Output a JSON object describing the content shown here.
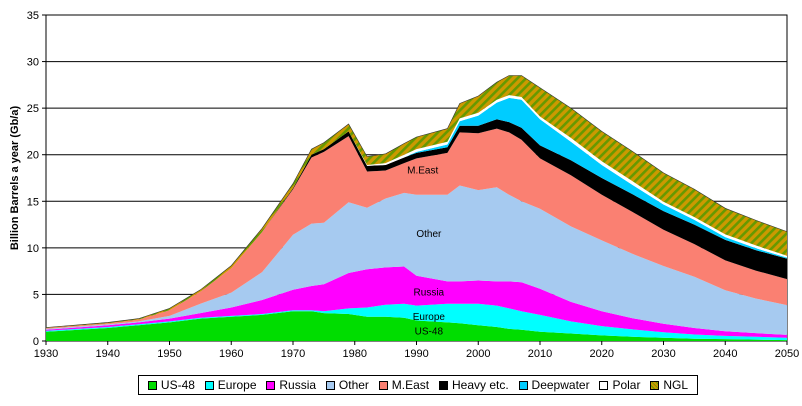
{
  "chart_data": {
    "type": "area",
    "stacked": true,
    "title": "",
    "xlabel": "",
    "ylabel": "Billion Barrels a year (Gb/a)",
    "xlim": [
      1930,
      2050
    ],
    "ylim": [
      0,
      35
    ],
    "x_ticks": [
      "1930",
      "1940",
      "1950",
      "1960",
      "1970",
      "1980",
      "1990",
      "2000",
      "2010",
      "2020",
      "2030",
      "2040",
      "2050"
    ],
    "y_ticks": [
      "0",
      "5",
      "10",
      "15",
      "20",
      "25",
      "30",
      "35"
    ],
    "grid": "horizontal",
    "legend_position": "bottom",
    "x": [
      1930,
      1940,
      1945,
      1950,
      1955,
      1960,
      1965,
      1970,
      1973,
      1975,
      1979,
      1982,
      1985,
      1988,
      1990,
      1995,
      1997,
      2000,
      2003,
      2005,
      2007,
      2010,
      2015,
      2020,
      2025,
      2030,
      2035,
      2040,
      2045,
      2050
    ],
    "series": [
      {
        "name": "US-48",
        "color": "#00dd00",
        "pattern": "solid",
        "values": [
          1.0,
          1.4,
          1.7,
          2.0,
          2.4,
          2.6,
          2.8,
          3.2,
          3.2,
          3.0,
          2.9,
          2.6,
          2.6,
          2.5,
          2.2,
          2.0,
          1.9,
          1.7,
          1.5,
          1.3,
          1.2,
          1.0,
          0.8,
          0.6,
          0.45,
          0.35,
          0.25,
          0.2,
          0.15,
          0.1
        ]
      },
      {
        "name": "Europe",
        "color": "#00ffff",
        "pattern": "solid",
        "values": [
          0.1,
          0.1,
          0.1,
          0.1,
          0.1,
          0.1,
          0.1,
          0.1,
          0.1,
          0.2,
          0.6,
          1.0,
          1.3,
          1.5,
          1.6,
          2.0,
          2.1,
          2.3,
          2.3,
          2.2,
          2.0,
          1.8,
          1.3,
          1.0,
          0.8,
          0.6,
          0.45,
          0.35,
          0.3,
          0.25
        ]
      },
      {
        "name": "Russia",
        "color": "#ff00ff",
        "pattern": "solid",
        "values": [
          0.1,
          0.2,
          0.2,
          0.3,
          0.5,
          0.9,
          1.5,
          2.2,
          2.6,
          2.9,
          3.8,
          4.1,
          4.0,
          4.0,
          3.2,
          2.4,
          2.4,
          2.5,
          2.6,
          2.9,
          3.1,
          2.8,
          2.1,
          1.6,
          1.2,
          0.9,
          0.7,
          0.5,
          0.4,
          0.3
        ]
      },
      {
        "name": "Other",
        "color": "#a6caf0",
        "pattern": "solid",
        "values": [
          0.1,
          0.1,
          0.1,
          0.3,
          1.0,
          1.6,
          3.0,
          5.9,
          6.7,
          6.6,
          7.6,
          6.6,
          7.4,
          7.9,
          8.7,
          9.3,
          10.3,
          9.7,
          10.1,
          9.3,
          8.7,
          8.6,
          8.1,
          7.6,
          6.9,
          6.2,
          5.5,
          4.4,
          3.7,
          3.2
        ]
      },
      {
        "name": "M.East",
        "color": "#fa8072",
        "pattern": "solid",
        "values": [
          0.1,
          0.1,
          0.2,
          0.6,
          1.3,
          2.6,
          4.3,
          4.9,
          7.1,
          7.6,
          7.1,
          3.9,
          3.0,
          3.2,
          3.9,
          4.5,
          5.7,
          6.1,
          6.3,
          6.7,
          6.6,
          5.4,
          5.5,
          4.9,
          4.5,
          3.9,
          3.5,
          3.2,
          3.0,
          2.8
        ]
      },
      {
        "name": "Heavy etc.",
        "color": "#000000",
        "pattern": "solid",
        "values": [
          0,
          0,
          0,
          0,
          0,
          0,
          0,
          0.1,
          0.3,
          0.3,
          0.5,
          0.6,
          0.6,
          0.6,
          0.6,
          0.6,
          0.7,
          0.8,
          1.0,
          1.1,
          1.3,
          1.4,
          1.6,
          1.8,
          1.9,
          2.0,
          2.1,
          2.2,
          2.2,
          2.2
        ]
      },
      {
        "name": "Deepwater",
        "color": "#00ccff",
        "pattern": "solid",
        "values": [
          0,
          0,
          0,
          0,
          0,
          0,
          0,
          0,
          0,
          0,
          0,
          0,
          0,
          0,
          0.1,
          0.3,
          0.5,
          1.1,
          1.8,
          2.6,
          3.0,
          2.8,
          2.0,
          1.4,
          1.0,
          0.7,
          0.5,
          0.3,
          0.2,
          0.1
        ]
      },
      {
        "name": "Polar",
        "color": "#ffffff",
        "pattern": "solid",
        "values": [
          0,
          0,
          0,
          0,
          0,
          0,
          0,
          0,
          0,
          0,
          0,
          0.1,
          0.2,
          0.3,
          0.3,
          0.3,
          0.3,
          0.3,
          0.3,
          0.3,
          0.3,
          0.3,
          0.4,
          0.4,
          0.4,
          0.3,
          0.3,
          0.3,
          0.3,
          0.2
        ]
      },
      {
        "name": "NGL",
        "color": "#cc9900",
        "pattern": "stripes",
        "values": [
          0.05,
          0.1,
          0.1,
          0.2,
          0.2,
          0.3,
          0.4,
          0.5,
          0.6,
          0.7,
          0.8,
          0.9,
          1.0,
          1.2,
          1.3,
          1.4,
          1.6,
          1.8,
          1.9,
          2.1,
          2.3,
          3.1,
          3.2,
          3.2,
          3.2,
          3.1,
          3.0,
          2.8,
          2.7,
          2.6
        ]
      }
    ],
    "annotations": [
      {
        "text": "M.East",
        "x": 1991,
        "y": 18.3
      },
      {
        "text": "Other",
        "x": 1992,
        "y": 11.5
      },
      {
        "text": "Russia",
        "x": 1992,
        "y": 5.2
      },
      {
        "text": "Europe",
        "x": 1992,
        "y": 2.6
      },
      {
        "text": "US-48",
        "x": 1992,
        "y": 1.0
      }
    ]
  }
}
